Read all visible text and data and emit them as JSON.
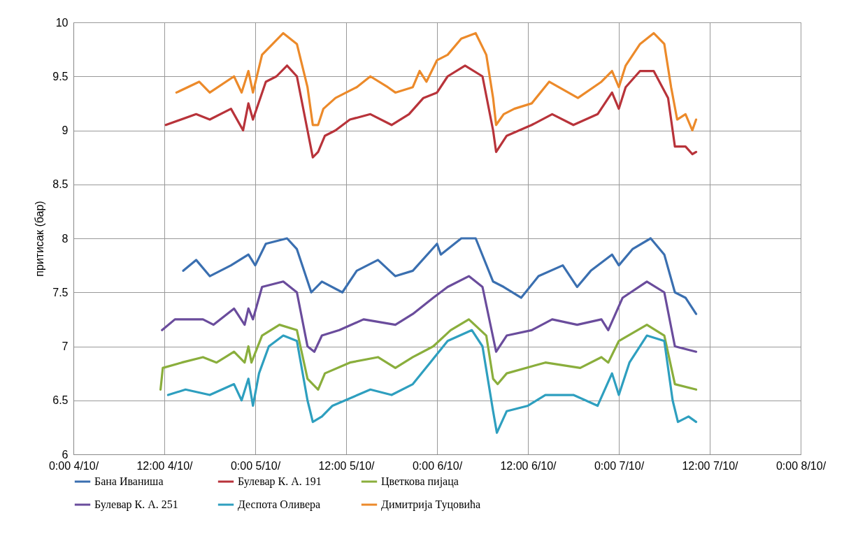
{
  "chart_data": {
    "type": "line",
    "ylabel": "притисак (бар)",
    "xlim": [
      "--10-04T00:00",
      "--10-08T00:00"
    ],
    "xticks": [
      {
        "value": "--10-04T00:00",
        "label": "0:00 4/10/"
      },
      {
        "value": "--10-04T12:00",
        "label": "12:00 4/10/"
      },
      {
        "value": "--10-05T00:00",
        "label": "0:00 5/10/"
      },
      {
        "value": "--10-05T12:00",
        "label": "12:00 5/10/"
      },
      {
        "value": "--10-06T00:00",
        "label": "0:00 6/10/"
      },
      {
        "value": "--10-06T12:00",
        "label": "12:00 6/10/"
      },
      {
        "value": "--10-07T00:00",
        "label": "0:00 7/10/"
      },
      {
        "value": "--10-07T12:00",
        "label": "12:00 7/10/"
      },
      {
        "value": "--10-08T00:00",
        "label": "0:00 8/10/"
      }
    ],
    "ylim": [
      6,
      10
    ],
    "yticks": [
      6,
      6.5,
      7,
      7.5,
      8,
      8.5,
      9,
      9.5,
      10
    ],
    "grid": true,
    "legend": "bottom",
    "marker": "none",
    "line_style": "solid",
    "series": [
      {
        "name": "Бана Иваниша",
        "color": "#3a6fb0",
        "x": [
          "--10-04T14:30",
          "--10-04T16:12",
          "--10-04T18:00",
          "--10-04T20:48",
          "--10-04T23:06",
          "--10-05T00:00",
          "--10-05T01:24",
          "--10-05T04:12",
          "--10-05T05:30",
          "--10-05T07:24",
          "--10-05T08:48",
          "--10-05T11:30",
          "--10-05T13:24",
          "--10-05T16:12",
          "--10-05T18:30",
          "--10-05T20:48",
          "--10-06T00:00",
          "--10-06T00:30",
          "--10-06T03:12",
          "--10-06T05:06",
          "--10-06T07:24",
          "--10-06T08:48",
          "--10-06T11:06",
          "--10-06T13:24",
          "--10-06T16:36",
          "--10-06T18:30",
          "--10-06T20:18",
          "--10-06T23:06",
          "--10-07T00:00",
          "--10-07T01:48",
          "--10-07T04:12",
          "--10-07T06:00",
          "--10-07T07:24",
          "--10-07T08:48",
          "--10-07T10:12"
        ],
        "values": [
          7.7,
          7.8,
          7.65,
          7.75,
          7.85,
          7.75,
          7.95,
          8.0,
          7.9,
          7.5,
          7.6,
          7.5,
          7.7,
          7.8,
          7.65,
          7.7,
          7.95,
          7.85,
          8.0,
          8.0,
          7.6,
          7.55,
          7.45,
          7.65,
          7.75,
          7.55,
          7.7,
          7.85,
          7.75,
          7.9,
          8.0,
          7.85,
          7.5,
          7.45,
          7.3
        ]
      },
      {
        "name": "Булевар К. А. 191",
        "color": "#b8333a",
        "x": [
          "--10-04T12:12",
          "--10-04T16:12",
          "--10-04T18:00",
          "--10-04T20:48",
          "--10-04T22:24",
          "--10-04T23:06",
          "--10-04T23:42",
          "--10-05T01:24",
          "--10-05T02:48",
          "--10-05T04:12",
          "--10-05T05:30",
          "--10-05T06:54",
          "--10-05T07:36",
          "--10-05T08:18",
          "--10-05T09:12",
          "--10-05T10:36",
          "--10-05T12:30",
          "--10-05T15:12",
          "--10-05T18:00",
          "--10-05T20:18",
          "--10-05T22:12",
          "--10-06T00:00",
          "--10-06T01:24",
          "--10-06T03:42",
          "--10-06T06:00",
          "--10-06T07:24",
          "--10-06T07:48",
          "--10-06T09:12",
          "--10-06T12:30",
          "--10-06T15:12",
          "--10-06T18:00",
          "--10-06T21:12",
          "--10-06T23:06",
          "--10-07T00:00",
          "--10-07T00:54",
          "--10-07T02:48",
          "--10-07T04:36",
          "--10-07T06:30",
          "--10-07T07:24",
          "--10-07T08:48",
          "--10-07T09:42",
          "--10-07T10:12"
        ],
        "values": [
          9.05,
          9.15,
          9.1,
          9.2,
          9.0,
          9.25,
          9.1,
          9.45,
          9.5,
          9.6,
          9.5,
          9.0,
          8.75,
          8.8,
          8.95,
          9.0,
          9.1,
          9.15,
          9.05,
          9.15,
          9.3,
          9.35,
          9.5,
          9.6,
          9.5,
          9.0,
          8.8,
          8.95,
          9.05,
          9.15,
          9.05,
          9.15,
          9.35,
          9.2,
          9.4,
          9.55,
          9.55,
          9.3,
          8.85,
          8.85,
          8.78,
          8.8
        ]
      },
      {
        "name": "Цветкова пијаца",
        "color": "#8aae3c",
        "x": [
          "--10-04T11:30",
          "--10-04T11:48",
          "--10-04T14:18",
          "--10-04T17:06",
          "--10-04T18:54",
          "--10-04T21:12",
          "--10-04T22:36",
          "--10-04T23:06",
          "--10-04T23:30",
          "--10-05T00:54",
          "--10-05T03:12",
          "--10-05T05:30",
          "--10-05T06:54",
          "--10-05T08:18",
          "--10-05T09:12",
          "--10-05T12:30",
          "--10-05T16:12",
          "--10-05T18:30",
          "--10-05T20:48",
          "--10-05T23:30",
          "--10-06T01:48",
          "--10-06T04:12",
          "--10-06T06:30",
          "--10-06T07:24",
          "--10-06T08:00",
          "--10-06T09:12",
          "--10-06T14:18",
          "--10-06T18:54",
          "--10-06T21:42",
          "--10-06T22:36",
          "--10-07T00:00",
          "--10-07T03:42",
          "--10-07T06:00",
          "--10-07T07:24",
          "--10-07T10:12"
        ],
        "values": [
          6.6,
          6.8,
          6.85,
          6.9,
          6.85,
          6.95,
          6.85,
          7.0,
          6.85,
          7.1,
          7.2,
          7.15,
          6.7,
          6.6,
          6.75,
          6.85,
          6.9,
          6.8,
          6.9,
          7.0,
          7.15,
          7.25,
          7.1,
          6.7,
          6.65,
          6.75,
          6.85,
          6.8,
          6.9,
          6.85,
          7.05,
          7.2,
          7.1,
          6.65,
          6.6
        ]
      },
      {
        "name": "Булевар К. А. 251",
        "color": "#6a4c9c",
        "x": [
          "--10-04T11:42",
          "--10-04T13:24",
          "--10-04T17:06",
          "--10-04T18:30",
          "--10-04T21:12",
          "--10-04T22:36",
          "--10-04T23:06",
          "--10-04T23:42",
          "--10-05T00:54",
          "--10-05T03:42",
          "--10-05T05:30",
          "--10-05T06:54",
          "--10-05T07:48",
          "--10-05T08:48",
          "--10-05T11:06",
          "--10-05T14:18",
          "--10-05T18:30",
          "--10-05T20:48",
          "--10-05T23:30",
          "--10-06T01:24",
          "--10-06T04:12",
          "--10-06T06:00",
          "--10-06T07:48",
          "--10-06T09:12",
          "--10-06T12:30",
          "--10-06T15:12",
          "--10-06T18:30",
          "--10-06T21:42",
          "--10-06T22:36",
          "--10-07T00:30",
          "--10-07T03:42",
          "--10-07T06:00",
          "--10-07T07:24",
          "--10-07T10:12"
        ],
        "values": [
          7.15,
          7.25,
          7.25,
          7.2,
          7.35,
          7.2,
          7.35,
          7.25,
          7.55,
          7.6,
          7.5,
          7.0,
          6.95,
          7.1,
          7.15,
          7.25,
          7.2,
          7.3,
          7.45,
          7.55,
          7.65,
          7.55,
          6.95,
          7.1,
          7.15,
          7.25,
          7.2,
          7.25,
          7.15,
          7.45,
          7.6,
          7.5,
          7.0,
          6.95
        ]
      },
      {
        "name": "Деспота Оливера",
        "color": "#2e9fbf",
        "x": [
          "--10-04T12:30",
          "--10-04T14:48",
          "--10-04T18:00",
          "--10-04T21:12",
          "--10-04T22:12",
          "--10-04T23:06",
          "--10-04T23:42",
          "--10-05T00:30",
          "--10-05T01:48",
          "--10-05T03:42",
          "--10-05T05:30",
          "--10-05T06:54",
          "--10-05T07:36",
          "--10-05T08:48",
          "--10-05T10:12",
          "--10-05T15:12",
          "--10-05T18:00",
          "--10-05T20:48",
          "--10-05T23:06",
          "--10-06T01:24",
          "--10-06T04:36",
          "--10-06T06:00",
          "--10-06T07:24",
          "--10-06T07:54",
          "--10-06T09:12",
          "--10-06T12:00",
          "--10-06T14:18",
          "--10-06T18:00",
          "--10-06T21:12",
          "--10-06T23:06",
          "--10-07T00:00",
          "--10-07T01:24",
          "--10-07T03:42",
          "--10-07T06:00",
          "--10-07T07:06",
          "--10-07T07:48",
          "--10-07T09:12",
          "--10-07T10:12"
        ],
        "values": [
          6.55,
          6.6,
          6.55,
          6.65,
          6.5,
          6.7,
          6.45,
          6.75,
          7.0,
          7.1,
          7.05,
          6.5,
          6.3,
          6.35,
          6.45,
          6.6,
          6.55,
          6.65,
          6.85,
          7.05,
          7.15,
          7.0,
          6.4,
          6.2,
          6.4,
          6.45,
          6.55,
          6.55,
          6.45,
          6.75,
          6.55,
          6.85,
          7.1,
          7.05,
          6.5,
          6.3,
          6.35,
          6.3
        ]
      },
      {
        "name": "Димитрија Туцовића",
        "color": "#ec8a2a",
        "x": [
          "--10-04T13:36",
          "--10-04T16:36",
          "--10-04T18:00",
          "--10-04T21:12",
          "--10-04T22:12",
          "--10-04T23:06",
          "--10-04T23:42",
          "--10-05T00:54",
          "--10-05T02:18",
          "--10-05T03:42",
          "--10-05T05:30",
          "--10-05T06:54",
          "--10-05T07:36",
          "--10-05T08:18",
          "--10-05T09:00",
          "--10-05T10:36",
          "--10-05T13:24",
          "--10-05T15:12",
          "--10-05T17:30",
          "--10-05T18:30",
          "--10-05T20:48",
          "--10-05T21:42",
          "--10-05T22:36",
          "--10-06T00:00",
          "--10-06T01:24",
          "--10-06T03:12",
          "--10-06T05:06",
          "--10-06T06:30",
          "--10-06T07:24",
          "--10-06T07:48",
          "--10-06T08:48",
          "--10-06T10:12",
          "--10-06T12:30",
          "--10-06T14:48",
          "--10-06T18:36",
          "--10-06T21:42",
          "--10-06T23:06",
          "--10-07T00:00",
          "--10-07T00:54",
          "--10-07T02:48",
          "--10-07T04:36",
          "--10-07T06:00",
          "--10-07T06:54",
          "--10-07T07:42",
          "--10-07T08:48",
          "--10-07T09:42",
          "--10-07T10:12"
        ],
        "values": [
          9.35,
          9.45,
          9.35,
          9.5,
          9.35,
          9.55,
          9.35,
          9.7,
          9.8,
          9.9,
          9.8,
          9.4,
          9.05,
          9.05,
          9.2,
          9.3,
          9.4,
          9.5,
          9.4,
          9.35,
          9.4,
          9.55,
          9.45,
          9.65,
          9.7,
          9.85,
          9.9,
          9.7,
          9.3,
          9.05,
          9.15,
          9.2,
          9.25,
          9.45,
          9.3,
          9.45,
          9.55,
          9.4,
          9.6,
          9.8,
          9.9,
          9.8,
          9.4,
          9.1,
          9.15,
          9.0,
          9.1
        ]
      }
    ]
  }
}
